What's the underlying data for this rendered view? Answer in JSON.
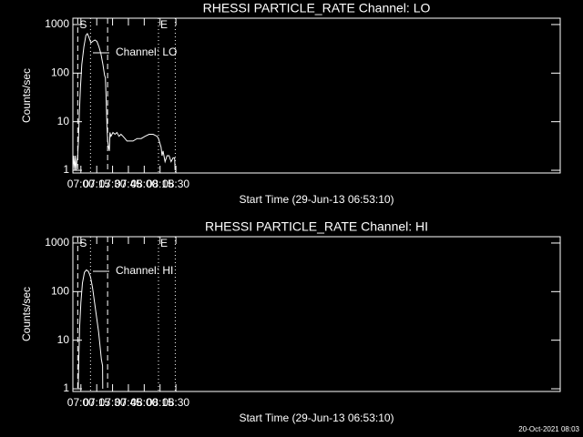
{
  "chart_data": [
    {
      "type": "line",
      "title": "RHESSI PARTICLE_RATE Channel: LO",
      "xlabel": "Start Time (29-Jun-13 06:53:10)",
      "ylabel": "Counts/sec",
      "ylog": true,
      "legend": "upper left",
      "grid": false,
      "xlim": [
        412.4,
        874.1
      ],
      "ylim": [
        0.88,
        1350
      ],
      "xticks": [
        {
          "value": 420,
          "label": "07:00"
        },
        {
          "value": 435,
          "label": "07:15"
        },
        {
          "value": 450,
          "label": "07:30"
        },
        {
          "value": 465,
          "label": "07:45"
        },
        {
          "value": 480,
          "label": "08:00"
        },
        {
          "value": 495,
          "label": "08:15"
        },
        {
          "value": 510,
          "label": "08:30"
        }
      ],
      "yticks": [
        1,
        10,
        100,
        1000
      ],
      "vlines": [
        {
          "x": 417.0,
          "style": "dashed"
        },
        {
          "x": 445.3,
          "style": "dashed"
        },
        {
          "x": 429.1,
          "style": "dotted"
        },
        {
          "x": 493.5,
          "style": "dotted"
        },
        {
          "x": 509.4,
          "style": "dotted"
        }
      ],
      "annotations": [
        {
          "text": "S",
          "x": 417.0
        },
        {
          "text": "E",
          "x": 493.5
        }
      ],
      "series": [
        {
          "name": "Channel: LO",
          "color": "#ffffff",
          "x": [
            412.4,
            413.2,
            414.0,
            414.7,
            415.4,
            416.2,
            417.0,
            417.7,
            418.5,
            419.6,
            420.9,
            422.8,
            424.7,
            426.1,
            427.6,
            429.5,
            431.0,
            433.3,
            435.2,
            437.1,
            439.0,
            440.9,
            442.4,
            443.2,
            443.9,
            444.7,
            445.4,
            446.2,
            447.0,
            447.5,
            448.5,
            450.4,
            452.3,
            454.2,
            456.1,
            458.0,
            459.9,
            461.8,
            463.7,
            469.4,
            473.2,
            477.0,
            480.8,
            484.6,
            488.4,
            492.2,
            493.5,
            495.0,
            495.9,
            496.9,
            497.8,
            499.7,
            501.6,
            503.5,
            505.4,
            507.3,
            508.8,
            509.2
          ],
          "values": [
            1,
            2,
            1,
            2,
            1,
            1.5,
            2,
            4,
            15,
            50,
            150,
            350,
            600,
            650,
            550,
            420,
            450,
            480,
            450,
            350,
            250,
            150,
            90,
            80,
            30,
            8,
            4,
            3,
            2.5,
            6,
            5,
            6,
            5.5,
            6,
            5,
            5.5,
            5,
            4.5,
            4,
            4,
            4.5,
            4.5,
            5,
            5.5,
            5.5,
            5,
            4.5,
            3.5,
            3,
            2,
            2.5,
            1.5,
            2,
            2,
            1.5,
            1.8,
            1.8,
            1
          ]
        }
      ]
    },
    {
      "type": "line",
      "title": "RHESSI PARTICLE_RATE Channel: HI",
      "xlabel": "Start Time (29-Jun-13 06:53:10)",
      "ylabel": "Counts/sec",
      "ylog": true,
      "legend": "upper left",
      "grid": false,
      "xlim": [
        412.4,
        874.1
      ],
      "ylim": [
        0.88,
        1350
      ],
      "xticks": [
        {
          "value": 420,
          "label": "07:00"
        },
        {
          "value": 435,
          "label": "07:15"
        },
        {
          "value": 450,
          "label": "07:30"
        },
        {
          "value": 465,
          "label": "07:45"
        },
        {
          "value": 480,
          "label": "08:00"
        },
        {
          "value": 495,
          "label": "08:15"
        },
        {
          "value": 510,
          "label": "08:30"
        }
      ],
      "yticks": [
        1,
        10,
        100,
        1000
      ],
      "vlines": [
        {
          "x": 417.0,
          "style": "dashed"
        },
        {
          "x": 445.3,
          "style": "dashed"
        },
        {
          "x": 429.1,
          "style": "dotted"
        },
        {
          "x": 493.5,
          "style": "dotted"
        },
        {
          "x": 509.4,
          "style": "dotted"
        }
      ],
      "annotations": [
        {
          "text": "S",
          "x": 417.0
        },
        {
          "text": "E",
          "x": 493.5
        }
      ],
      "series": [
        {
          "name": "Channel: HI",
          "color": "#ffffff",
          "x": [
            417.5,
            418.1,
            418.9,
            420.0,
            421.5,
            423.4,
            425.3,
            427.2,
            429.1,
            431.0,
            432.9,
            434.8,
            436.7,
            438.0,
            439.4,
            440.5,
            440.7
          ],
          "values": [
            1,
            5,
            20,
            60,
            150,
            250,
            280,
            260,
            200,
            120,
            60,
            30,
            15,
            8,
            4,
            3,
            1
          ]
        }
      ]
    }
  ],
  "footer": "20-Oct-2021 08:03"
}
